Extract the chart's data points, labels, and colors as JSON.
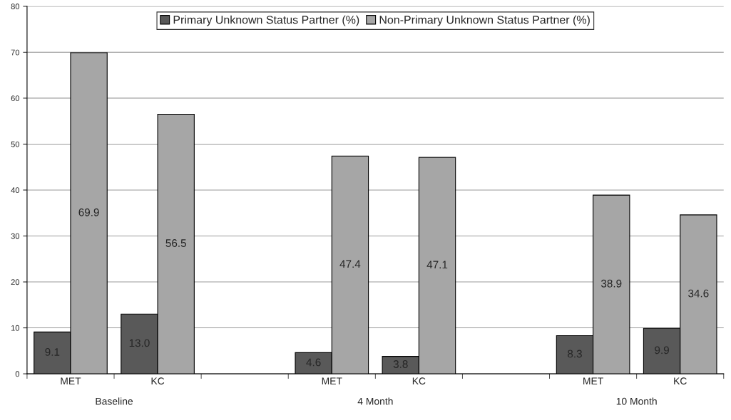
{
  "chart_data": {
    "type": "bar",
    "categories": [
      "MET",
      "KC",
      null,
      "MET",
      "KC",
      null,
      "MET",
      "KC"
    ],
    "series": [
      {
        "name": "Primary Unknown Status Partner (%)",
        "color": "#595959",
        "values": [
          9.1,
          13.0,
          null,
          4.6,
          3.8,
          null,
          8.3,
          9.9
        ],
        "value_labels": [
          "9.1",
          "13.0",
          null,
          "4.6",
          "3.8",
          null,
          "8.3",
          "9.9"
        ]
      },
      {
        "name": "Non-Primary Unknown Status Partner (%)",
        "color": "#a6a6a6",
        "values": [
          69.9,
          56.5,
          null,
          47.4,
          47.1,
          null,
          38.9,
          34.6
        ],
        "value_labels": [
          "69.9",
          "56.5",
          null,
          "47.4",
          "47.1",
          null,
          "38.9",
          "34.6"
        ]
      }
    ],
    "ylim": [
      0,
      80
    ],
    "yticks": [
      0,
      10,
      20,
      30,
      40,
      50,
      60,
      70,
      80
    ],
    "grid": "y",
    "legend": "top",
    "annotations": [
      "Baseline",
      "4 Month",
      "10 Month"
    ]
  }
}
